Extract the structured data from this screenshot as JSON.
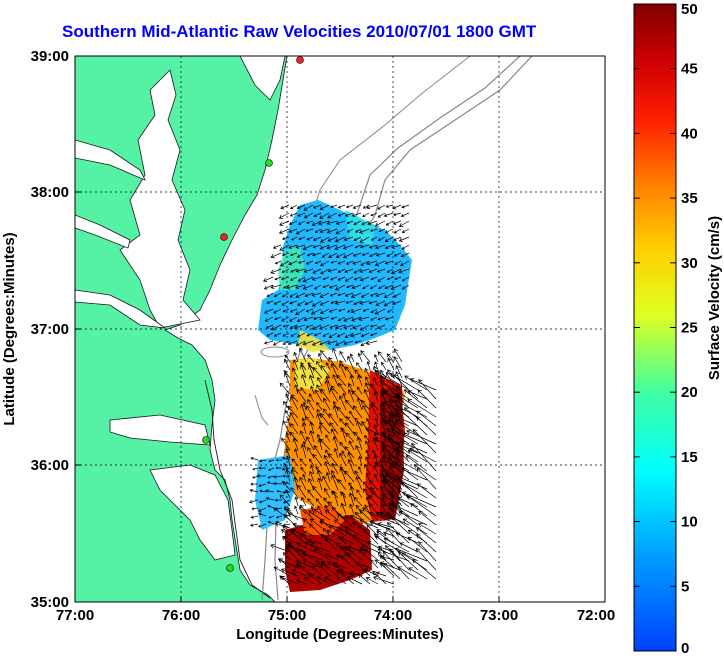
{
  "title": "Southern Mid-Atlantic Raw Velocities 2010/07/01 1800 GMT",
  "x_axis": {
    "label": "Longitude (Degrees:Minutes)",
    "ticks": [
      "77:00",
      "76:00",
      "75:00",
      "74:00",
      "73:00",
      "72:00"
    ],
    "range": [
      -77,
      -72
    ]
  },
  "y_axis": {
    "label": "Latitude (Degrees:Minutes)",
    "ticks": [
      "39:00",
      "38:00",
      "37:00",
      "36:00",
      "35:00"
    ],
    "range": [
      35,
      39
    ]
  },
  "colorbar": {
    "label": "Surface Velocity (cm/s)",
    "ticks": [
      "50",
      "45",
      "40",
      "35",
      "30",
      "25",
      "20",
      "15",
      "10",
      "5",
      "0"
    ],
    "range": [
      0,
      50
    ]
  },
  "colors": {
    "land": "#55f2a5",
    "title": "#0000ff",
    "station_green": "#22dd22",
    "station_red": "#ee2222"
  },
  "chart_data": {
    "type": "heatmap",
    "title": "Southern Mid-Atlantic Raw Velocities 2010/07/01 1800 GMT",
    "xlabel": "Longitude (Degrees:Minutes)",
    "ylabel": "Latitude (Degrees:Minutes)",
    "xlim": [
      -77,
      -72
    ],
    "ylim": [
      35,
      39
    ],
    "colorbar_label": "Surface Velocity (cm/s)",
    "clim": [
      0,
      50
    ],
    "grid": true,
    "stations": [
      {
        "lon": -74.88,
        "lat": 38.98,
        "color": "red"
      },
      {
        "lon": -75.1,
        "lat": 38.2,
        "color": "green"
      },
      {
        "lon": -75.55,
        "lat": 37.7,
        "color": "red"
      },
      {
        "lon": -75.3,
        "lat": 36.2,
        "color": "green"
      },
      {
        "lon": -75.5,
        "lat": 35.27,
        "color": "green"
      }
    ],
    "velocity_regions": [
      {
        "region": "north",
        "lon_range": [
          -75.1,
          -73.8
        ],
        "lat_range": [
          36.6,
          37.9
        ],
        "speed_range": [
          5,
          20
        ]
      },
      {
        "region": "central",
        "lon_range": [
          -75.0,
          -74.2
        ],
        "lat_range": [
          35.6,
          36.6
        ],
        "speed_range": [
          25,
          50
        ]
      },
      {
        "region": "south",
        "lon_range": [
          -75.0,
          -74.1
        ],
        "lat_range": [
          35.07,
          35.6
        ],
        "speed_range": [
          35,
          50
        ]
      }
    ]
  }
}
